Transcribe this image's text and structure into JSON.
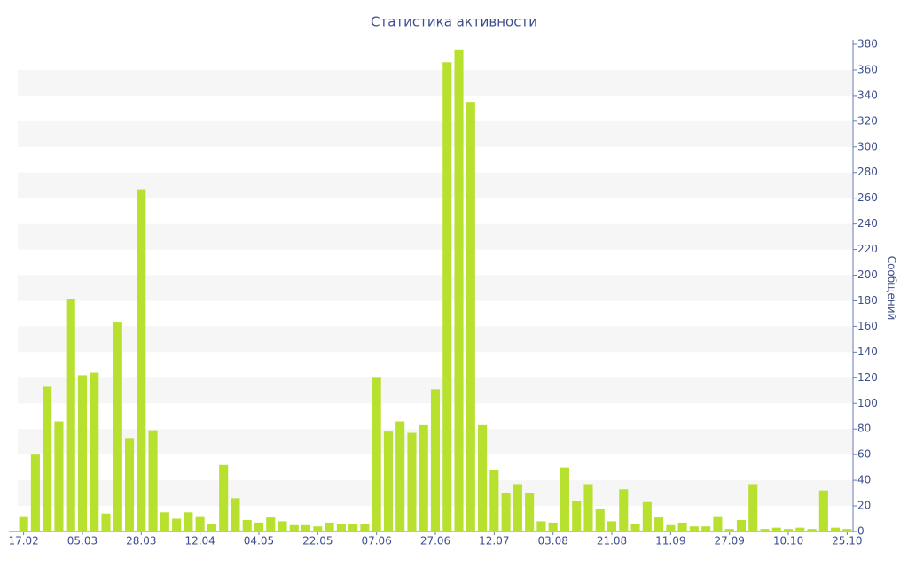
{
  "chart_data": {
    "type": "bar",
    "title": "Статистика активности",
    "y_axis_label": "Сообщений",
    "categories": [
      "17.02",
      null,
      null,
      null,
      null,
      "05.03",
      null,
      null,
      null,
      null,
      "28.03",
      null,
      null,
      null,
      null,
      "12.04",
      null,
      null,
      null,
      null,
      "04.05",
      null,
      null,
      null,
      null,
      "22.05",
      null,
      null,
      null,
      null,
      "07.06",
      null,
      null,
      null,
      null,
      "27.06",
      null,
      null,
      null,
      null,
      "12.07",
      null,
      null,
      null,
      null,
      "03.08",
      null,
      null,
      null,
      null,
      "21.08",
      null,
      null,
      null,
      null,
      "11.09",
      null,
      null,
      null,
      null,
      "27.09",
      null,
      null,
      null,
      null,
      "10.10",
      null,
      null,
      null,
      null,
      "25.10"
    ],
    "values": [
      12,
      60,
      113,
      86,
      181,
      122,
      124,
      14,
      163,
      73,
      267,
      79,
      15,
      10,
      15,
      12,
      6,
      52,
      26,
      9,
      7,
      11,
      8,
      5,
      5,
      4,
      7,
      6,
      6,
      6,
      120,
      78,
      86,
      77,
      83,
      111,
      366,
      376,
      335,
      83,
      48,
      30,
      37,
      30,
      8,
      7,
      50,
      24,
      37,
      18,
      8,
      33,
      6,
      23,
      11,
      5,
      7,
      4,
      4,
      12,
      2,
      9,
      37,
      2,
      3,
      2,
      3,
      2,
      32,
      3,
      2
    ],
    "color": "#b7e02f",
    "ylim": [
      0,
      380
    ],
    "yticks": [
      0,
      20,
      40,
      60,
      80,
      100,
      120,
      140,
      160,
      180,
      200,
      220,
      240,
      260,
      280,
      300,
      320,
      340,
      360,
      380
    ],
    "grid": true
  }
}
